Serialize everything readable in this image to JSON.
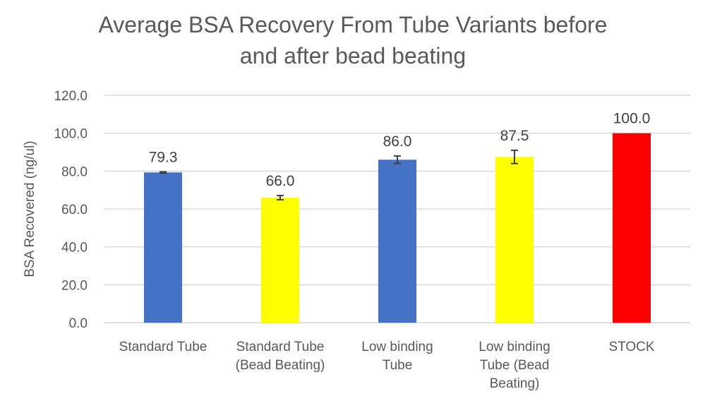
{
  "chart_data": {
    "type": "bar",
    "title": "Average BSA Recovery From Tube Variants before and after bead beating",
    "title_lines": [
      "Average BSA Recovery From Tube Variants before",
      "and after bead beating"
    ],
    "xlabel": "",
    "ylabel": "BSA Recovered (ng/ul)",
    "ylim": [
      0,
      120
    ],
    "yticks": [
      "0.0",
      "20.0",
      "40.0",
      "60.0",
      "80.0",
      "100.0",
      "120.0"
    ],
    "grid": true,
    "legend": "none",
    "categories": [
      "Standard Tube",
      "Standard Tube (Bead Beating)",
      "Low binding Tube",
      "Low binding Tube (Bead Beating)",
      "STOCK"
    ],
    "category_lines": [
      [
        "Standard Tube"
      ],
      [
        "Standard Tube",
        "(Bead Beating)"
      ],
      [
        "Low binding",
        "Tube"
      ],
      [
        "Low binding",
        "Tube (Bead",
        "Beating)"
      ],
      [
        "STOCK"
      ]
    ],
    "values": [
      79.3,
      66.0,
      86.0,
      87.5,
      100.0
    ],
    "data_labels": [
      "79.3",
      "66.0",
      "86.0",
      "87.5",
      "100.0"
    ],
    "error": [
      0.3,
      1.1,
      2.0,
      3.5,
      null
    ],
    "colors": [
      "#4472C4",
      "#FFFF00",
      "#4472C4",
      "#FFFF00",
      "#FF0000"
    ]
  }
}
